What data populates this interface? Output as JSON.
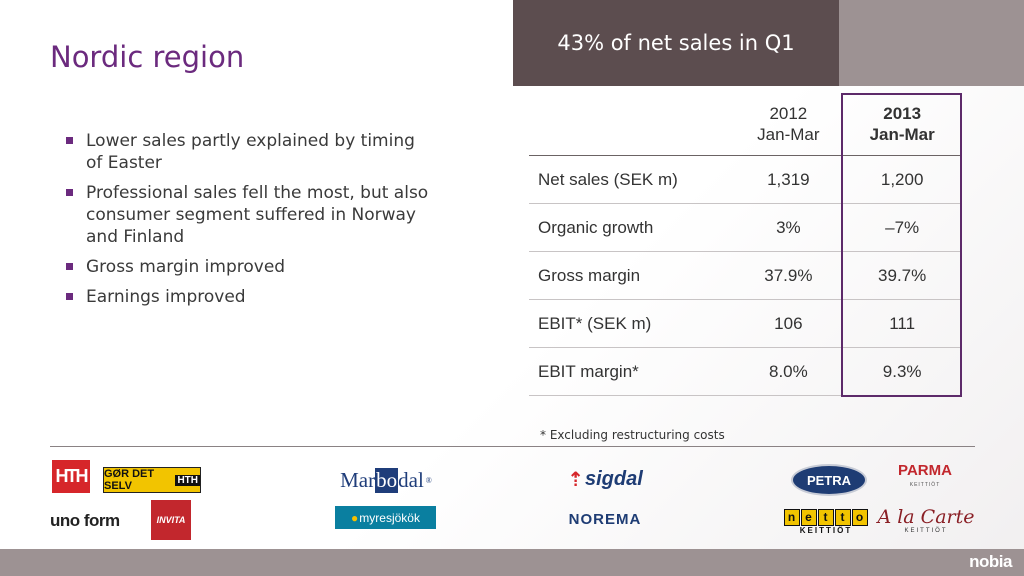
{
  "slide": {
    "title": "Nordic region",
    "header": "43% of net sales in Q1"
  },
  "bullets": [
    "Lower sales partly explained by timing of Easter",
    "Professional sales fell the most, but also consumer segment suffered in Norway and Finland",
    "Gross margin improved",
    "Earnings improved"
  ],
  "table": {
    "columns": [
      {
        "line1": "2012",
        "line2": "Jan-Mar"
      },
      {
        "line1": "2013",
        "line2": "Jan-Mar"
      }
    ],
    "rows": [
      {
        "label": "Net sales (SEK m)",
        "v2012": "1,319",
        "v2013": "1,200"
      },
      {
        "label": "Organic growth",
        "v2012": "3%",
        "v2013": "–7%"
      },
      {
        "label": "Gross margin",
        "v2012": "37.9%",
        "v2013": "39.7%"
      },
      {
        "label": "EBIT* (SEK m)",
        "v2012": "106",
        "v2013": "111"
      },
      {
        "label": "EBIT margin*",
        "v2012": "8.0%",
        "v2013": "9.3%"
      }
    ],
    "footnote": "* Excluding restructuring costs"
  },
  "logos": {
    "hth": "HTH",
    "gor_det_selv": "GØR DET SELV",
    "gor_det_selv_mark": "HTH",
    "uno_form": "uno form",
    "invita": "INVITA",
    "marbodal_a": "Mar",
    "marbodal_b": "bo",
    "marbodal_c": "dal",
    "myresjokok": "myresjökök",
    "sigdal": "sigdal",
    "norema": "NOREMA",
    "petra": "PETRA",
    "parma": "PARMA",
    "parma_sub": "KEITTIÖT",
    "netto": [
      "n",
      "e",
      "t",
      "t",
      "o"
    ],
    "netto_sub": "KEITTIÖT",
    "alacarte": "A la Carte",
    "alacarte_sub": "KEITTIÖT"
  },
  "footer": {
    "brand": "nobia"
  },
  "colors": {
    "title": "#6b2a7e",
    "header_band": "#5c4d4f",
    "grey_band": "#9d9293",
    "highlight_border": "#5d2a6a"
  }
}
